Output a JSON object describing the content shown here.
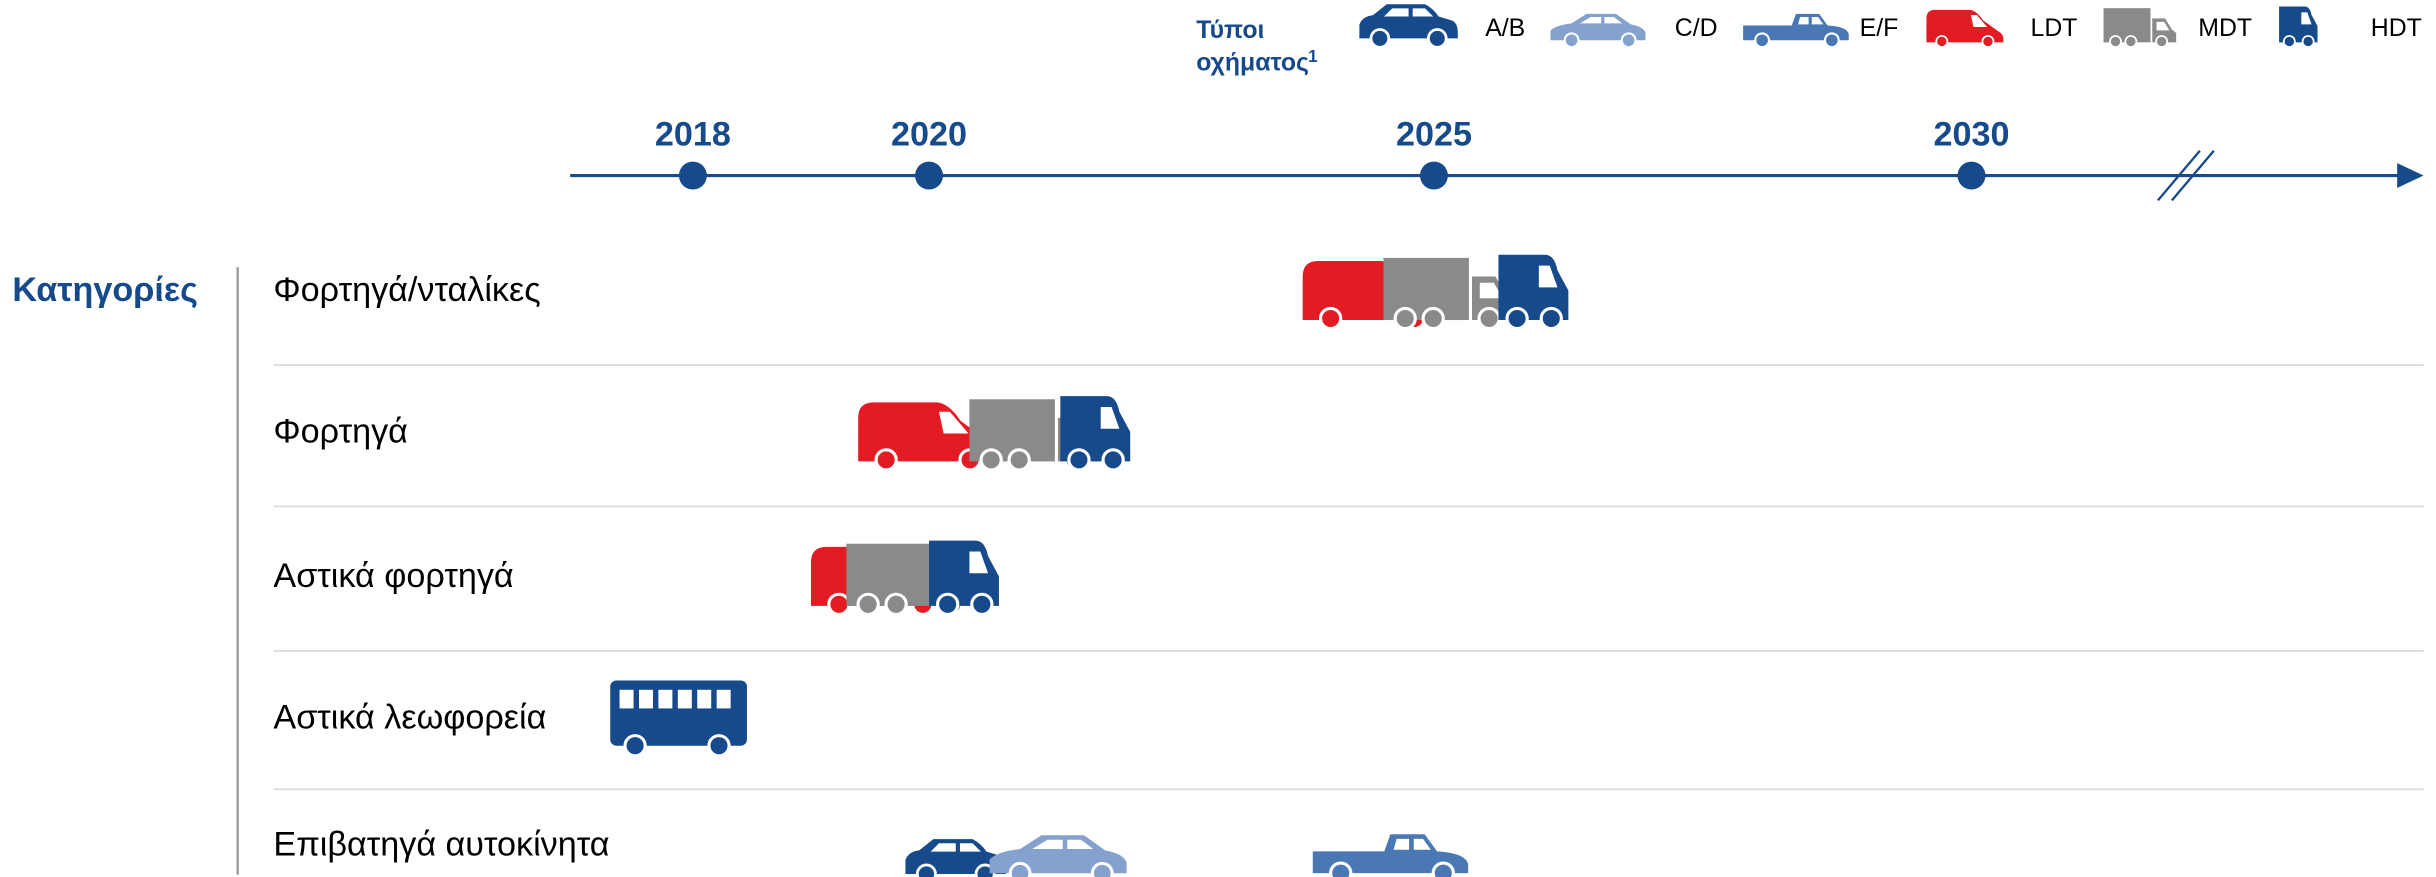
{
  "legend": {
    "title": "Τύποι οχήματος",
    "title_note": "1",
    "items": [
      {
        "label": "A/B",
        "color": "#164a8a"
      },
      {
        "label": "C/D",
        "color": "#84a2cd"
      },
      {
        "label": "E/F",
        "color": "#4a78b5"
      },
      {
        "label": "LDT",
        "color": "#e31b23"
      },
      {
        "label": "MDT",
        "color": "#8a8a8a"
      },
      {
        "label": "HDT",
        "color": "#164a8a"
      }
    ]
  },
  "timeline": {
    "ticks": [
      2018,
      2020,
      2025,
      2030
    ]
  },
  "categories_title": "Κατηγορίες",
  "rows": [
    {
      "label": "Φορτηγά/νταλίκες",
      "vehicles": [
        {
          "type": "LDT",
          "year": 2023.7
        },
        {
          "type": "MDT",
          "year": 2024.5
        },
        {
          "type": "HDT",
          "year": 2025.6
        }
      ]
    },
    {
      "label": "Φορτηγά",
      "vehicles": [
        {
          "type": "LDT",
          "year": 2019.4
        },
        {
          "type": "MDT",
          "year": 2020.4
        },
        {
          "type": "HDT",
          "year": 2021.3
        }
      ]
    },
    {
      "label": "Αστικά φορτηγά",
      "vehicles": [
        {
          "type": "LDT",
          "year": 2019
        },
        {
          "type": "MDT",
          "year": 2019.3
        },
        {
          "type": "HDT",
          "year": 2020
        }
      ]
    },
    {
      "label": "Αστικά λεωφορεία",
      "vehicles": [
        {
          "type": "BUS",
          "year": 2017.3,
          "color": "#164a8a"
        }
      ]
    },
    {
      "label": "Επιβατηγά αυτοκίνητα",
      "vehicles": [
        {
          "type": "A/B",
          "year": 2019.8
        },
        {
          "type": "C/D",
          "year": 2020.6
        },
        {
          "type": "E/F",
          "year": 2023.8
        }
      ]
    }
  ]
}
